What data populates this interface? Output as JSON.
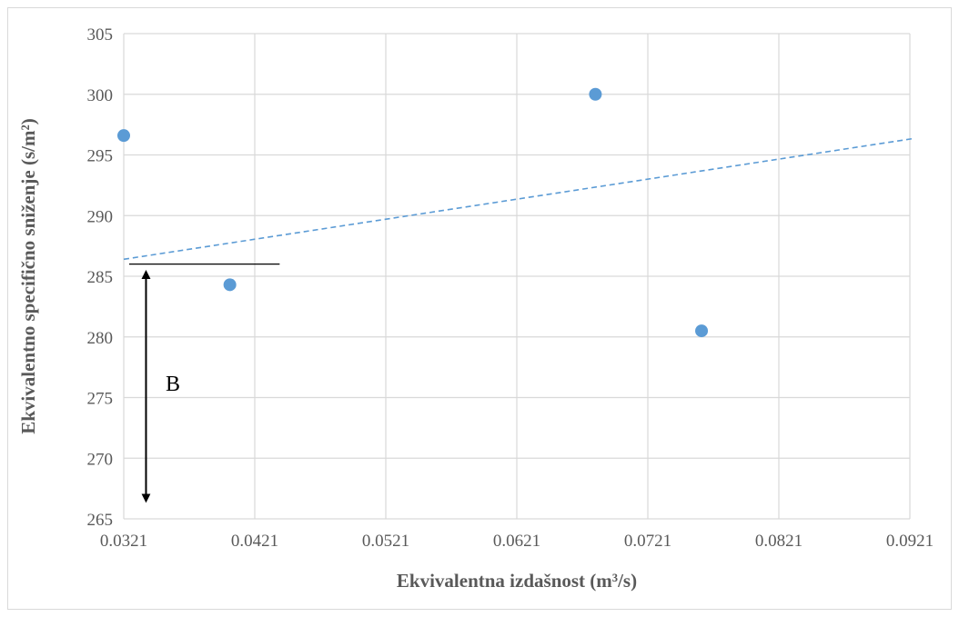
{
  "chart_data": {
    "type": "scatter",
    "xlabel": "Ekvivalentna izdašnost (m³/s)",
    "ylabel": "Ekvivalentno specifično sniženje (s/m²)",
    "xlim": [
      0.0321,
      0.0921
    ],
    "ylim": [
      265,
      305
    ],
    "x_ticks": [
      "0.0321",
      "0.0421",
      "0.0521",
      "0.0621",
      "0.0721",
      "0.0821",
      "0.0921"
    ],
    "y_ticks": [
      "265",
      "270",
      "275",
      "280",
      "285",
      "290",
      "295",
      "300",
      "305"
    ],
    "grid": true,
    "series": [
      {
        "points": [
          {
            "x": 0.0321,
            "y": 296.6
          },
          {
            "x": 0.0402,
            "y": 284.3
          },
          {
            "x": 0.0681,
            "y": 300.0
          },
          {
            "x": 0.0762,
            "y": 280.5
          }
        ],
        "color": "#5b9bd5"
      }
    ],
    "trendline": {
      "style": "dashed",
      "color": "#5b9bd5",
      "start": {
        "x": 0.0321,
        "y": 286.4
      },
      "end": {
        "x": 0.0921,
        "y": 296.3
      }
    },
    "annotations": {
      "label": "B",
      "arrow": {
        "x": 0.0338,
        "y_from": 285.6,
        "y_to": 266.1
      },
      "reference_line": {
        "y": 286.0,
        "x_from": 0.0321,
        "x_to": 0.044
      }
    }
  }
}
